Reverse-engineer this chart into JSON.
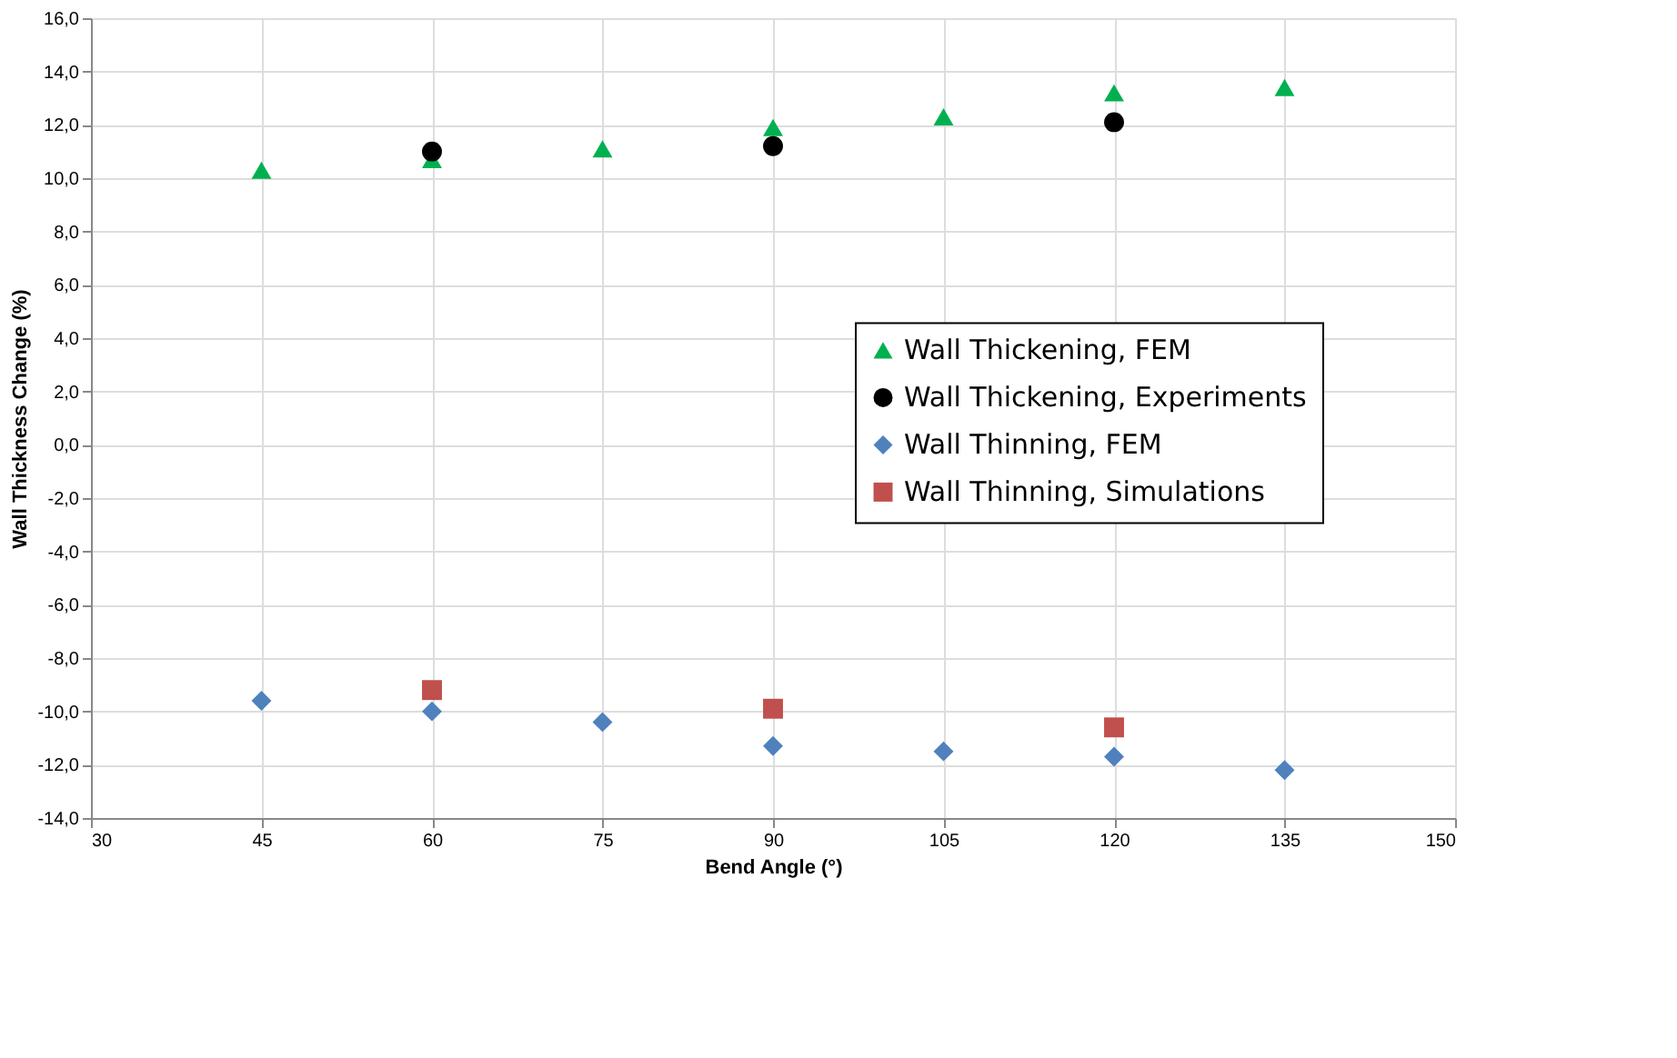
{
  "chart_data": {
    "type": "scatter",
    "xlabel": "Bend Angle (°)",
    "ylabel": "Wall Thickness Change (%)",
    "x": [
      45,
      60,
      75,
      90,
      105,
      120,
      135
    ],
    "series": [
      {
        "name": "Wall Thickening, FEM",
        "color": "#00b050",
        "marker": "triangle",
        "values": [
          10.3,
          10.7,
          11.1,
          11.9,
          12.3,
          13.2,
          13.4
        ]
      },
      {
        "name": "Wall Thickening, Experiments",
        "color": "#000000",
        "marker": "circle",
        "x": [
          60,
          90,
          120
        ],
        "values": [
          11.0,
          11.2,
          12.1
        ]
      },
      {
        "name": "Wall Thinning, FEM",
        "color": "#4f81bd",
        "marker": "diamond",
        "values": [
          -9.6,
          -10.0,
          -10.4,
          -11.3,
          -11.5,
          -11.7,
          -12.2
        ]
      },
      {
        "name": "Wall Thinning, Simulations",
        "color": "#c0504d",
        "marker": "square",
        "x": [
          60,
          90,
          120
        ],
        "values": [
          -9.2,
          -9.9,
          -10.6
        ]
      }
    ],
    "xlim": [
      30,
      150
    ],
    "xticks": [
      30,
      45,
      60,
      75,
      90,
      105,
      120,
      135,
      150
    ],
    "ylim": [
      -14,
      16
    ],
    "yticks": [
      {
        "value": -14,
        "label": "-14,0"
      },
      {
        "value": -12,
        "label": "-12,0"
      },
      {
        "value": -10,
        "label": "-10,0"
      },
      {
        "value": -8,
        "label": "-8,0"
      },
      {
        "value": -6,
        "label": "-6,0"
      },
      {
        "value": -4,
        "label": "-4,0"
      },
      {
        "value": -2,
        "label": "-2,0"
      },
      {
        "value": 0,
        "label": "0,0"
      },
      {
        "value": 2,
        "label": "2,0"
      },
      {
        "value": 4,
        "label": "4,0"
      },
      {
        "value": 6,
        "label": "6,0"
      },
      {
        "value": 8,
        "label": "8,0"
      },
      {
        "value": 10,
        "label": "10,0"
      },
      {
        "value": 12,
        "label": "12,0"
      },
      {
        "value": 14,
        "label": "14,0"
      },
      {
        "value": 16,
        "label": "16,0"
      }
    ],
    "grid": true,
    "legend": "right"
  }
}
